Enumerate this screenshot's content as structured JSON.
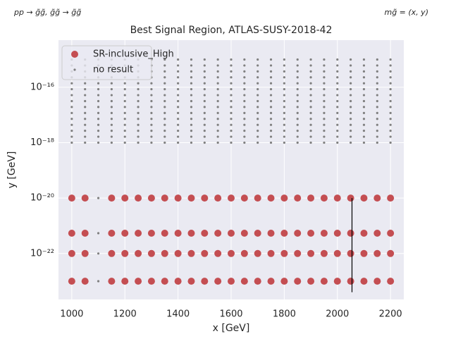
{
  "chart_data": {
    "type": "scatter",
    "title": "Best Signal Region, ATLAS-SUSY-2018-42",
    "annotations": [
      "pp → g̃g̃, g̃g̃ → g̃g̃",
      "mg̃ = (x, y)"
    ],
    "xlabel": "x [GeV]",
    "ylabel": "y [GeV]",
    "xlim": [
      950,
      2250
    ],
    "ylim": [
      2.2e-24,
      5e-15
    ],
    "ylog": true,
    "grid": true,
    "legend": "upper left",
    "xticks": [
      1000,
      1200,
      1400,
      1600,
      1800,
      2000,
      2200
    ],
    "yticks": [
      {
        "value": 1e-22,
        "label": "10⁻²²"
      },
      {
        "value": 1e-20,
        "label": "10⁻²⁰"
      },
      {
        "value": 1e-18,
        "label": "10⁻¹⁸"
      },
      {
        "value": 1e-16,
        "label": "10⁻¹⁶"
      }
    ],
    "vline": {
      "x": 2055,
      "y": [
        1e-20,
        4e-24
      ],
      "color": "#000000"
    },
    "series": [
      {
        "name": "SR-inclusive_High",
        "color": "#c44e52",
        "x": [
          1000,
          1050,
          1150,
          1200,
          1250,
          1300,
          1350,
          1400,
          1450,
          1500,
          1550,
          1600,
          1650,
          1700,
          1750,
          1800,
          1850,
          1900,
          1950,
          2000,
          2050,
          2100,
          2150,
          2200,
          1000,
          1050,
          1150,
          1200,
          1250,
          1300,
          1350,
          1400,
          1450,
          1500,
          1550,
          1600,
          1650,
          1700,
          1750,
          1800,
          1850,
          1900,
          1950,
          2000,
          2050,
          2100,
          2150,
          2200,
          1000,
          1050,
          1150,
          1200,
          1250,
          1300,
          1350,
          1400,
          1450,
          1500,
          1550,
          1600,
          1650,
          1700,
          1750,
          1800,
          1850,
          1900,
          1950,
          2000,
          2050,
          2100,
          2150,
          2200,
          1000,
          1050,
          1150,
          1200,
          1250,
          1300,
          1350,
          1400,
          1450,
          1500,
          1550,
          1600,
          1650,
          1700,
          1750,
          1800,
          1850,
          1900,
          1950,
          2000,
          2050,
          2100,
          2150,
          2200
        ],
        "y": [
          1e-20,
          1e-20,
          1e-20,
          1e-20,
          1e-20,
          1e-20,
          1e-20,
          1e-20,
          1e-20,
          1e-20,
          1e-20,
          1e-20,
          1e-20,
          1e-20,
          1e-20,
          1e-20,
          1e-20,
          1e-20,
          1e-20,
          1e-20,
          1e-20,
          1e-20,
          1e-20,
          1e-20,
          5.4e-22,
          5.4e-22,
          5.4e-22,
          5.4e-22,
          5.4e-22,
          5.4e-22,
          5.4e-22,
          5.4e-22,
          5.4e-22,
          5.4e-22,
          5.4e-22,
          5.4e-22,
          5.4e-22,
          5.4e-22,
          5.4e-22,
          5.4e-22,
          5.4e-22,
          5.4e-22,
          5.4e-22,
          5.4e-22,
          5.4e-22,
          5.4e-22,
          5.4e-22,
          5.4e-22,
          1e-22,
          1e-22,
          1e-22,
          1e-22,
          1e-22,
          1e-22,
          1e-22,
          1e-22,
          1e-22,
          1e-22,
          1e-22,
          1e-22,
          1e-22,
          1e-22,
          1e-22,
          1e-22,
          1e-22,
          1e-22,
          1e-22,
          1e-22,
          1e-22,
          1e-22,
          1e-22,
          1e-22,
          1e-23,
          1e-23,
          1e-23,
          1e-23,
          1e-23,
          1e-23,
          1e-23,
          1e-23,
          1e-23,
          1e-23,
          1e-23,
          1e-23,
          1e-23,
          1e-23,
          1e-23,
          1e-23,
          1e-23,
          1e-23,
          1e-23,
          1e-23,
          1e-23,
          1e-23,
          1e-23,
          1e-23
        ]
      },
      {
        "name": "no result",
        "color": "#808080",
        "x": [
          1000,
          1050,
          1100,
          1150,
          1200,
          1250,
          1300,
          1350,
          1400,
          1450,
          1500,
          1550,
          1600,
          1650,
          1700,
          1750,
          1800,
          1850,
          1900,
          1950,
          2000,
          2050,
          2100,
          2150,
          2200,
          1000,
          1050,
          1100,
          1150,
          1200,
          1250,
          1300,
          1350,
          1400,
          1450,
          1500,
          1550,
          1600,
          1650,
          1700,
          1750,
          1800,
          1850,
          1900,
          1950,
          2000,
          2050,
          2100,
          2150,
          2200,
          1000,
          1050,
          1100,
          1150,
          1200,
          1250,
          1300,
          1350,
          1400,
          1450,
          1500,
          1550,
          1600,
          1650,
          1700,
          1750,
          1800,
          1850,
          1900,
          1950,
          2000,
          2050,
          2100,
          2150,
          2200,
          1000,
          1050,
          1100,
          1150,
          1200,
          1250,
          1300,
          1350,
          1400,
          1450,
          1500,
          1550,
          1600,
          1650,
          1700,
          1750,
          1800,
          1850,
          1900,
          1950,
          2000,
          2050,
          2100,
          2150,
          2200,
          1000,
          1050,
          1100,
          1150,
          1200,
          1250,
          1300,
          1350,
          1400,
          1450,
          1500,
          1550,
          1600,
          1650,
          1700,
          1750,
          1800,
          1850,
          1900,
          1950,
          2000,
          2050,
          2100,
          2150,
          2200,
          1000,
          1050,
          1100,
          1150,
          1200,
          1250,
          1300,
          1350,
          1400,
          1450,
          1500,
          1550,
          1600,
          1650,
          1700,
          1750,
          1800,
          1850,
          1900,
          1950,
          2000,
          2050,
          2100,
          2150,
          2200,
          1000,
          1050,
          1100,
          1150,
          1200,
          1250,
          1300,
          1350,
          1400,
          1450,
          1500,
          1550,
          1600,
          1650,
          1700,
          1750,
          1800,
          1850,
          1900,
          1950,
          2000,
          2050,
          2100,
          2150,
          2200,
          1000,
          1050,
          1100,
          1150,
          1200,
          1250,
          1300,
          1350,
          1400,
          1450,
          1500,
          1550,
          1600,
          1650,
          1700,
          1750,
          1800,
          1850,
          1900,
          1950,
          2000,
          2050,
          2100,
          2150,
          2200,
          1000,
          1050,
          1100,
          1150,
          1200,
          1250,
          1300,
          1350,
          1400,
          1450,
          1500,
          1550,
          1600,
          1650,
          1700,
          1750,
          1800,
          1850,
          1900,
          1950,
          2000,
          2050,
          2100,
          2150,
          2200,
          1000,
          1050,
          1100,
          1150,
          1200,
          1250,
          1300,
          1350,
          1400,
          1450,
          1500,
          1550,
          1600,
          1650,
          1700,
          1750,
          1800,
          1850,
          1900,
          1950,
          2000,
          2050,
          2100,
          2150,
          2200,
          1000,
          1050,
          1100,
          1150,
          1200,
          1250,
          1300,
          1350,
          1400,
          1450,
          1500,
          1550,
          1600,
          1650,
          1700,
          1750,
          1800,
          1850,
          1900,
          1950,
          2000,
          2050,
          2100,
          2150,
          2200,
          1000,
          1050,
          1100,
          1150,
          1200,
          1250,
          1300,
          1350,
          1400,
          1450,
          1500,
          1550,
          1600,
          1650,
          1700,
          1750,
          1800,
          1850,
          1900,
          1950,
          2000,
          2050,
          2100,
          2150,
          2200,
          1000,
          1050,
          1100,
          1150,
          1200,
          1250,
          1300,
          1350,
          1400,
          1450,
          1500,
          1550,
          1600,
          1650,
          1700,
          1750,
          1800,
          1850,
          1900,
          1950,
          2000,
          2050,
          2100,
          2150,
          2200,
          1000,
          1050,
          1100,
          1150,
          1200,
          1250,
          1300,
          1350,
          1400,
          1450,
          1500,
          1550,
          1600,
          1650,
          1700,
          1750,
          1800,
          1850,
          1900,
          1950,
          2000,
          2050,
          2100,
          2150,
          2200,
          1000,
          1050,
          1100,
          1150,
          1200,
          1250,
          1300,
          1350,
          1400,
          1450,
          1500,
          1550,
          1600,
          1650,
          1700,
          1750,
          1800,
          1850,
          1900,
          1950,
          2000,
          2050,
          2100,
          2150,
          2200,
          1100,
          1100,
          1100,
          1100
        ],
        "y": [
          1e-18,
          1e-18,
          1e-18,
          1e-18,
          1e-18,
          1e-18,
          1e-18,
          1e-18,
          1e-18,
          1e-18,
          1e-18,
          1e-18,
          1e-18,
          1e-18,
          1e-18,
          1e-18,
          1e-18,
          1e-18,
          1e-18,
          1e-18,
          1e-18,
          1e-18,
          1e-18,
          1e-18,
          1e-18,
          1.638e-18,
          1.638e-18,
          1.638e-18,
          1.638e-18,
          1.638e-18,
          1.638e-18,
          1.638e-18,
          1.638e-18,
          1.638e-18,
          1.638e-18,
          1.638e-18,
          1.638e-18,
          1.638e-18,
          1.638e-18,
          1.638e-18,
          1.638e-18,
          1.638e-18,
          1.638e-18,
          1.638e-18,
          1.638e-18,
          1.638e-18,
          1.638e-18,
          1.638e-18,
          1.638e-18,
          1.638e-18,
          2.683e-18,
          2.683e-18,
          2.683e-18,
          2.683e-18,
          2.683e-18,
          2.683e-18,
          2.683e-18,
          2.683e-18,
          2.683e-18,
          2.683e-18,
          2.683e-18,
          2.683e-18,
          2.683e-18,
          2.683e-18,
          2.683e-18,
          2.683e-18,
          2.683e-18,
          2.683e-18,
          2.683e-18,
          2.683e-18,
          2.683e-18,
          2.683e-18,
          2.683e-18,
          2.683e-18,
          2.683e-18,
          4.394e-18,
          4.394e-18,
          4.394e-18,
          4.394e-18,
          4.394e-18,
          4.394e-18,
          4.394e-18,
          4.394e-18,
          4.394e-18,
          4.394e-18,
          4.394e-18,
          4.394e-18,
          4.394e-18,
          4.394e-18,
          4.394e-18,
          4.394e-18,
          4.394e-18,
          4.394e-18,
          4.394e-18,
          4.394e-18,
          4.394e-18,
          4.394e-18,
          4.394e-18,
          4.394e-18,
          4.394e-18,
          7.197e-18,
          7.197e-18,
          7.197e-18,
          7.197e-18,
          7.197e-18,
          7.197e-18,
          7.197e-18,
          7.197e-18,
          7.197e-18,
          7.197e-18,
          7.197e-18,
          7.197e-18,
          7.197e-18,
          7.197e-18,
          7.197e-18,
          7.197e-18,
          7.197e-18,
          7.197e-18,
          7.197e-18,
          7.197e-18,
          7.197e-18,
          7.197e-18,
          7.197e-18,
          7.197e-18,
          7.197e-18,
          1.179e-17,
          1.179e-17,
          1.179e-17,
          1.179e-17,
          1.179e-17,
          1.179e-17,
          1.179e-17,
          1.179e-17,
          1.179e-17,
          1.179e-17,
          1.179e-17,
          1.179e-17,
          1.179e-17,
          1.179e-17,
          1.179e-17,
          1.179e-17,
          1.179e-17,
          1.179e-17,
          1.179e-17,
          1.179e-17,
          1.179e-17,
          1.179e-17,
          1.179e-17,
          1.179e-17,
          1.179e-17,
          1.931e-17,
          1.931e-17,
          1.931e-17,
          1.931e-17,
          1.931e-17,
          1.931e-17,
          1.931e-17,
          1.931e-17,
          1.931e-17,
          1.931e-17,
          1.931e-17,
          1.931e-17,
          1.931e-17,
          1.931e-17,
          1.931e-17,
          1.931e-17,
          1.931e-17,
          1.931e-17,
          1.931e-17,
          1.931e-17,
          1.931e-17,
          1.931e-17,
          1.931e-17,
          1.931e-17,
          1.931e-17,
          3.162e-17,
          3.162e-17,
          3.162e-17,
          3.162e-17,
          3.162e-17,
          3.162e-17,
          3.162e-17,
          3.162e-17,
          3.162e-17,
          3.162e-17,
          3.162e-17,
          3.162e-17,
          3.162e-17,
          3.162e-17,
          3.162e-17,
          3.162e-17,
          3.162e-17,
          3.162e-17,
          3.162e-17,
          3.162e-17,
          3.162e-17,
          3.162e-17,
          3.162e-17,
          3.162e-17,
          3.162e-17,
          5.179e-17,
          5.179e-17,
          5.179e-17,
          5.179e-17,
          5.179e-17,
          5.179e-17,
          5.179e-17,
          5.179e-17,
          5.179e-17,
          5.179e-17,
          5.179e-17,
          5.179e-17,
          5.179e-17,
          5.179e-17,
          5.179e-17,
          5.179e-17,
          5.179e-17,
          5.179e-17,
          5.179e-17,
          5.179e-17,
          5.179e-17,
          5.179e-17,
          5.179e-17,
          5.179e-17,
          5.179e-17,
          8.483e-17,
          8.483e-17,
          8.483e-17,
          8.483e-17,
          8.483e-17,
          8.483e-17,
          8.483e-17,
          8.483e-17,
          8.483e-17,
          8.483e-17,
          8.483e-17,
          8.483e-17,
          8.483e-17,
          8.483e-17,
          8.483e-17,
          8.483e-17,
          8.483e-17,
          8.483e-17,
          8.483e-17,
          8.483e-17,
          8.483e-17,
          8.483e-17,
          8.483e-17,
          8.483e-17,
          8.483e-17,
          1.389e-16,
          1.389e-16,
          1.389e-16,
          1.389e-16,
          1.389e-16,
          1.389e-16,
          1.389e-16,
          1.389e-16,
          1.389e-16,
          1.389e-16,
          1.389e-16,
          1.389e-16,
          1.389e-16,
          1.389e-16,
          1.389e-16,
          1.389e-16,
          1.389e-16,
          1.389e-16,
          1.389e-16,
          1.389e-16,
          1.389e-16,
          1.389e-16,
          1.389e-16,
          1.389e-16,
          1.389e-16,
          2.276e-16,
          2.276e-16,
          2.276e-16,
          2.276e-16,
          2.276e-16,
          2.276e-16,
          2.276e-16,
          2.276e-16,
          2.276e-16,
          2.276e-16,
          2.276e-16,
          2.276e-16,
          2.276e-16,
          2.276e-16,
          2.276e-16,
          2.276e-16,
          2.276e-16,
          2.276e-16,
          2.276e-16,
          2.276e-16,
          2.276e-16,
          2.276e-16,
          2.276e-16,
          2.276e-16,
          2.276e-16,
          3.728e-16,
          3.728e-16,
          3.728e-16,
          3.728e-16,
          3.728e-16,
          3.728e-16,
          3.728e-16,
          3.728e-16,
          3.728e-16,
          3.728e-16,
          3.728e-16,
          3.728e-16,
          3.728e-16,
          3.728e-16,
          3.728e-16,
          3.728e-16,
          3.728e-16,
          3.728e-16,
          3.728e-16,
          3.728e-16,
          3.728e-16,
          3.728e-16,
          3.728e-16,
          3.728e-16,
          3.728e-16,
          6.105e-16,
          6.105e-16,
          6.105e-16,
          6.105e-16,
          6.105e-16,
          6.105e-16,
          6.105e-16,
          6.105e-16,
          6.105e-16,
          6.105e-16,
          6.105e-16,
          6.105e-16,
          6.105e-16,
          6.105e-16,
          6.105e-16,
          6.105e-16,
          6.105e-16,
          6.105e-16,
          6.105e-16,
          6.105e-16,
          6.105e-16,
          6.105e-16,
          6.105e-16,
          6.105e-16,
          6.105e-16,
          1e-15,
          1e-15,
          1e-15,
          1e-15,
          1e-15,
          1e-15,
          1e-15,
          1e-15,
          1e-15,
          1e-15,
          1e-15,
          1e-15,
          1e-15,
          1e-15,
          1e-15,
          1e-15,
          1e-15,
          1e-15,
          1e-15,
          1e-15,
          1e-15,
          1e-15,
          1e-15,
          1e-15,
          1e-15,
          1e-20,
          5.4e-22,
          1e-22,
          1e-23
        ]
      }
    ]
  }
}
